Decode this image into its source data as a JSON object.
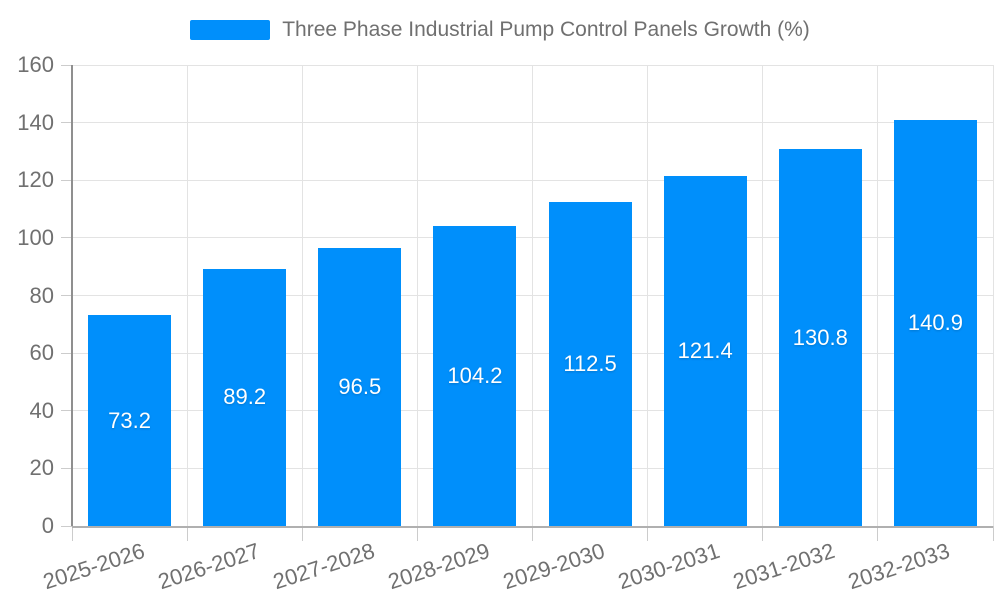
{
  "chart_data": {
    "type": "bar",
    "title": "Three Phase Industrial Pump Control Panels Growth (%)",
    "categories": [
      "2025-2026",
      "2026-2027",
      "2027-2028",
      "2028-2029",
      "2029-2030",
      "2030-2031",
      "2031-2032",
      "2032-2033"
    ],
    "series": [
      {
        "name": "Three Phase Industrial Pump Control Panels Growth (%)",
        "values": [
          73.2,
          89.2,
          96.5,
          104.2,
          112.5,
          121.4,
          130.8,
          140.9
        ]
      }
    ],
    "data_labels": [
      "73.2",
      "89.2",
      "96.5",
      "104.2",
      "112.5",
      "121.4",
      "130.8",
      "140.9"
    ],
    "yticks": [
      0,
      20,
      40,
      60,
      80,
      100,
      120,
      140,
      160
    ],
    "ylim": [
      0,
      160
    ],
    "xlabel": "",
    "ylabel": "",
    "grid": true,
    "legend_position": "top",
    "x_label_rotation_deg": -18,
    "colors": {
      "bar": "#008FFB",
      "bar_value_text": "#ffffff",
      "axis_text": "#707070",
      "gridline": "#e3e3e3",
      "y_axis_line": "#8f8f8f",
      "x_axis_line": "#b0b0b0"
    }
  }
}
